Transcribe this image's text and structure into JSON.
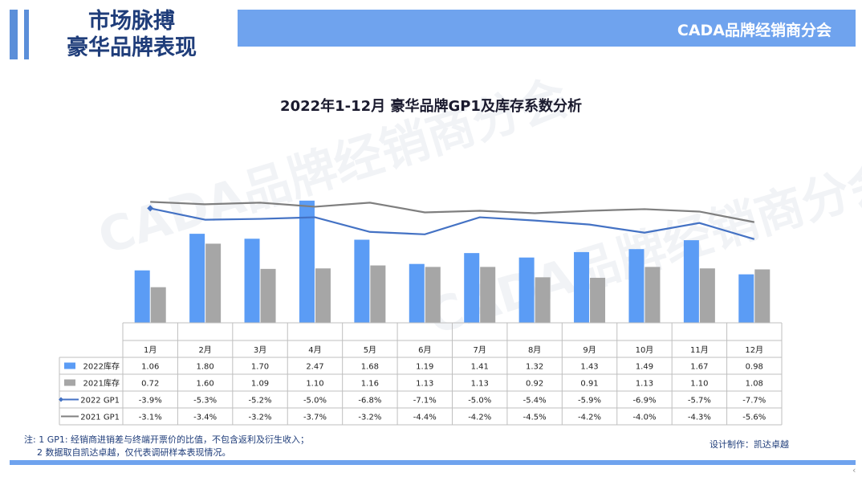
{
  "header": {
    "title_line1": "市场脉搏",
    "title_line2": "豪华品牌表现",
    "brand": "CADA品牌经销商分会",
    "watermark": "CADA品牌经销商分会"
  },
  "chart_data": {
    "type": "bar",
    "title": "2022年1-12月 豪华品牌GP1及库存系数分析",
    "categories": [
      "1月",
      "2月",
      "3月",
      "4月",
      "5月",
      "6月",
      "7月",
      "8月",
      "9月",
      "10月",
      "11月",
      "12月"
    ],
    "series": [
      {
        "name": "2022库存",
        "kind": "bar",
        "color": "#5b9cf5",
        "values": [
          1.06,
          1.8,
          1.7,
          2.47,
          1.68,
          1.19,
          1.41,
          1.32,
          1.43,
          1.49,
          1.67,
          0.98
        ],
        "labels": [
          "1.06",
          "1.80",
          "1.70",
          "2.47",
          "1.68",
          "1.19",
          "1.41",
          "1.32",
          "1.43",
          "1.49",
          "1.67",
          "0.98"
        ]
      },
      {
        "name": "2021库存",
        "kind": "bar",
        "color": "#a6a6a6",
        "values": [
          0.72,
          1.6,
          1.09,
          1.1,
          1.16,
          1.13,
          1.13,
          0.92,
          0.91,
          1.13,
          1.1,
          1.08
        ],
        "labels": [
          "0.72",
          "1.60",
          "1.09",
          "1.10",
          "1.16",
          "1.13",
          "1.13",
          "0.92",
          "0.91",
          "1.13",
          "1.10",
          "1.08"
        ]
      },
      {
        "name": "2022 GP1",
        "kind": "line",
        "color": "#4472c4",
        "marker": "diamond",
        "values": [
          -3.9,
          -5.3,
          -5.2,
          -5.0,
          -6.8,
          -7.1,
          -5.0,
          -5.4,
          -5.9,
          -6.9,
          -5.7,
          -7.7
        ],
        "labels": [
          "-3.9%",
          "-5.3%",
          "-5.2%",
          "-5.0%",
          "-6.8%",
          "-7.1%",
          "-5.0%",
          "-5.4%",
          "-5.9%",
          "-6.9%",
          "-5.7%",
          "-7.7%"
        ]
      },
      {
        "name": "2021 GP1",
        "kind": "line",
        "color": "#7f7f7f",
        "marker": "none",
        "values": [
          -3.1,
          -3.4,
          -3.2,
          -3.7,
          -3.2,
          -4.4,
          -4.2,
          -4.5,
          -4.2,
          -4.0,
          -4.3,
          -5.6
        ],
        "labels": [
          "-3.1%",
          "-3.4%",
          "-3.2%",
          "-3.7%",
          "-3.2%",
          "-4.4%",
          "-4.2%",
          "-4.5%",
          "-4.2%",
          "-4.0%",
          "-4.3%",
          "-5.6%"
        ]
      }
    ],
    "bar_ylim": [
      0,
      2.5
    ],
    "line_ylim": [
      -18,
      0
    ],
    "grid": false,
    "legend": "data-table"
  },
  "footer": {
    "note1": "注: 1 GP1: 经销商进销差与终端开票价的比值，不包含返利及衍生收入；",
    "note2": "2 数据取自凯达卓越，仅代表调研样本表现情况。",
    "credit": "设计制作：凯达卓越"
  }
}
